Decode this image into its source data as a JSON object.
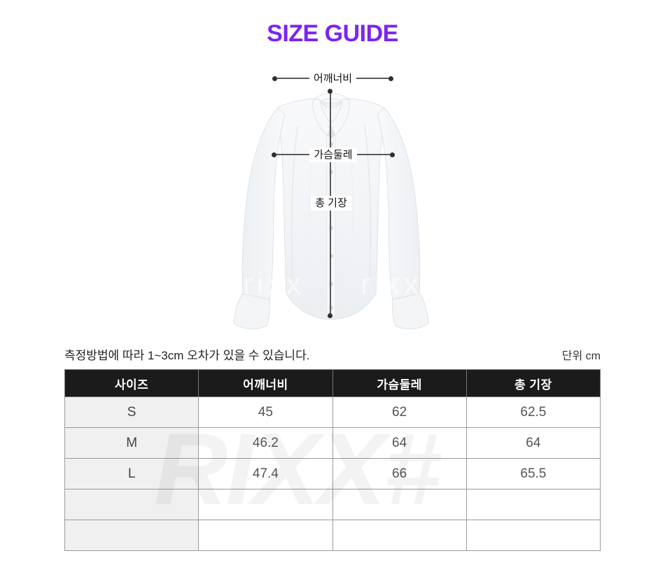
{
  "title": "SIZE GUIDE",
  "figure": {
    "shoulder_label": "어깨너비",
    "chest_label": "가슴둘레",
    "length_label": "총 기장",
    "shirt_watermark": "rixx"
  },
  "note": "측정방법에 따라 1~3cm 오차가 있을 수 있습니다.",
  "unit_label": "단위 cm",
  "table": {
    "headers": [
      "사이즈",
      "어깨너비",
      "가슴둘레",
      "총 기장"
    ],
    "rows": [
      [
        "S",
        "45",
        "62",
        "62.5"
      ],
      [
        "M",
        "46.2",
        "64",
        "64"
      ],
      [
        "L",
        "47.4",
        "66",
        "65.5"
      ],
      [
        "",
        "",
        "",
        ""
      ],
      [
        "",
        "",
        "",
        ""
      ]
    ]
  },
  "table_watermark": "RIXX#",
  "colors": {
    "title_color": "#7B24F2",
    "table_header_bg": "#1B1B1B",
    "size_column_bg": "#F0F0F0",
    "border_color": "#9B9B9B"
  }
}
